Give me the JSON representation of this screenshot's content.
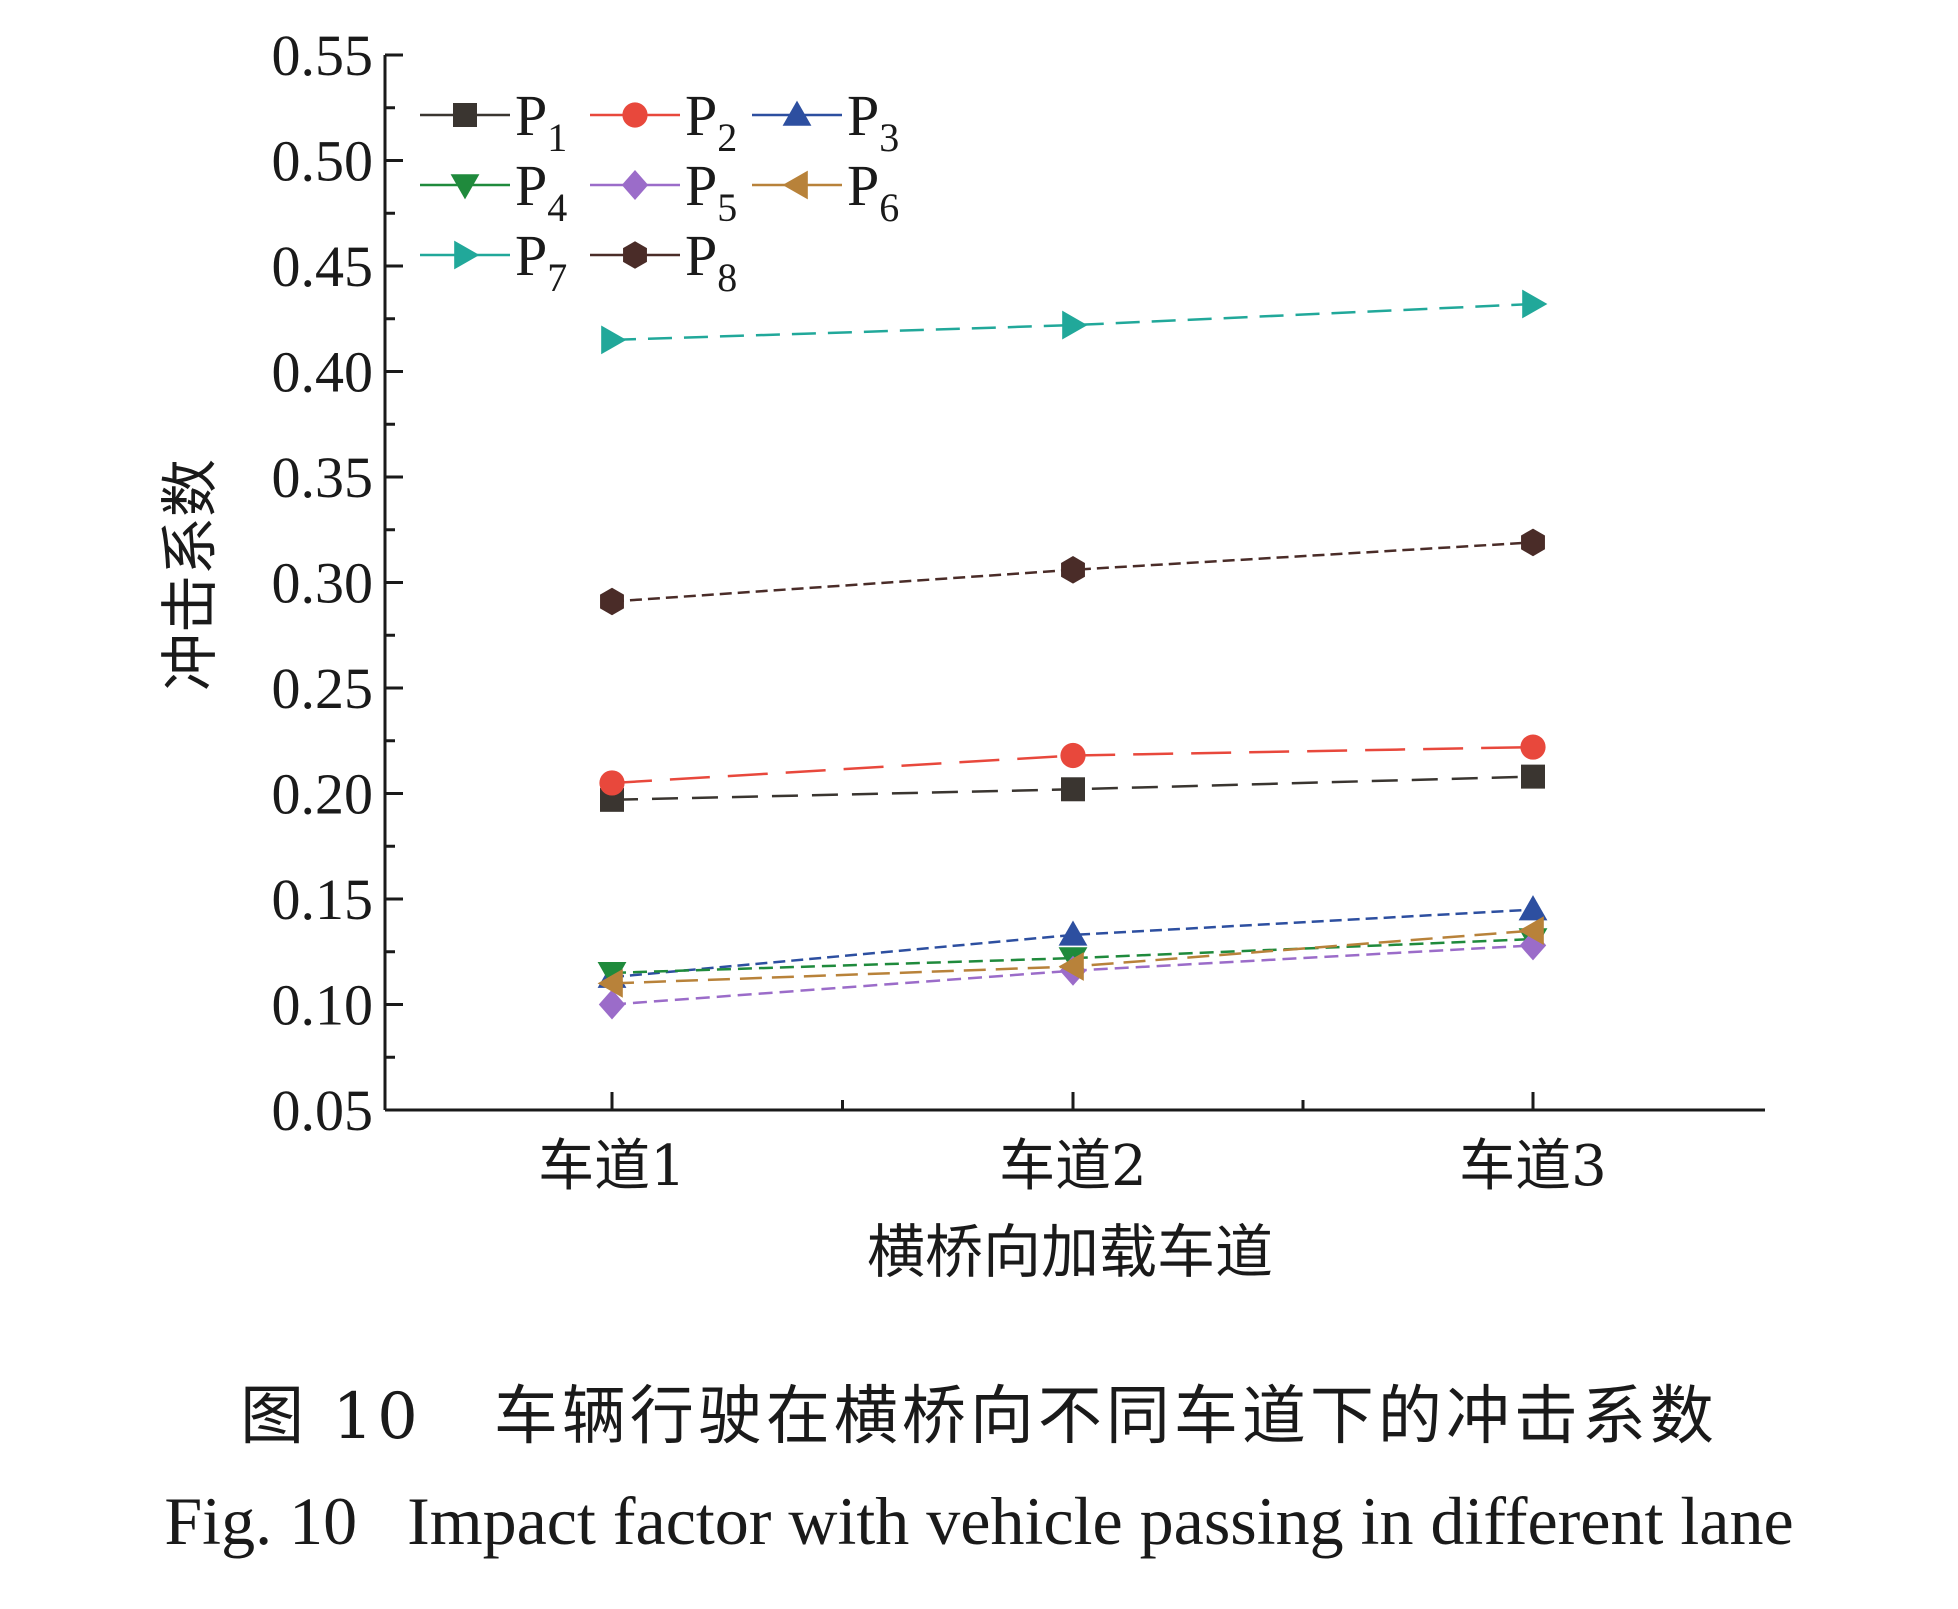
{
  "chart_data": {
    "type": "line",
    "categories": [
      "车道1",
      "车道2",
      "车道3"
    ],
    "xlabel": "横桥向加载车道",
    "ylabel": "冲击系数",
    "ylim": [
      0.05,
      0.55
    ],
    "yticks": [
      "0.05",
      "0.10",
      "0.15",
      "0.20",
      "0.25",
      "0.30",
      "0.35",
      "0.40",
      "0.45",
      "0.50",
      "0.55"
    ],
    "grid": false,
    "legend_position": "top-left",
    "series": [
      {
        "name": "P1",
        "base": "P",
        "sub": "1",
        "color": "#3a3530",
        "marker": "square",
        "dash": "26,14",
        "values": [
          0.197,
          0.202,
          0.208
        ]
      },
      {
        "name": "P2",
        "base": "P",
        "sub": "2",
        "color": "#e8483c",
        "marker": "circle",
        "dash": "40,18",
        "values": [
          0.205,
          0.218,
          0.222
        ]
      },
      {
        "name": "P3",
        "base": "P",
        "sub": "3",
        "color": "#2d4fa0",
        "marker": "triangle-up",
        "dash": "12,6",
        "values": [
          0.113,
          0.133,
          0.145
        ]
      },
      {
        "name": "P4",
        "base": "P",
        "sub": "4",
        "color": "#1f8a3c",
        "marker": "triangle-down",
        "dash": "14,7",
        "values": [
          0.115,
          0.122,
          0.131
        ]
      },
      {
        "name": "P5",
        "base": "P",
        "sub": "5",
        "color": "#9b6cc9",
        "marker": "diamond",
        "dash": "14,7",
        "values": [
          0.1,
          0.116,
          0.128
        ]
      },
      {
        "name": "P6",
        "base": "P",
        "sub": "6",
        "color": "#b8823a",
        "marker": "triangle-left",
        "dash": "22,10",
        "values": [
          0.11,
          0.118,
          0.135
        ]
      },
      {
        "name": "P7",
        "base": "P",
        "sub": "7",
        "color": "#21a89a",
        "marker": "triangle-right",
        "dash": "24,12",
        "values": [
          0.415,
          0.422,
          0.432
        ]
      },
      {
        "name": "P8",
        "base": "P",
        "sub": "8",
        "color": "#4a2c28",
        "marker": "hexagon",
        "dash": "12,6",
        "values": [
          0.291,
          0.306,
          0.319
        ]
      }
    ]
  },
  "caption": {
    "cn_label": "图 10",
    "cn_text": "车辆行驶在横桥向不同车道下的冲击系数",
    "en_label": "Fig. 10",
    "en_text": "Impact factor with vehicle passing in different lane"
  }
}
